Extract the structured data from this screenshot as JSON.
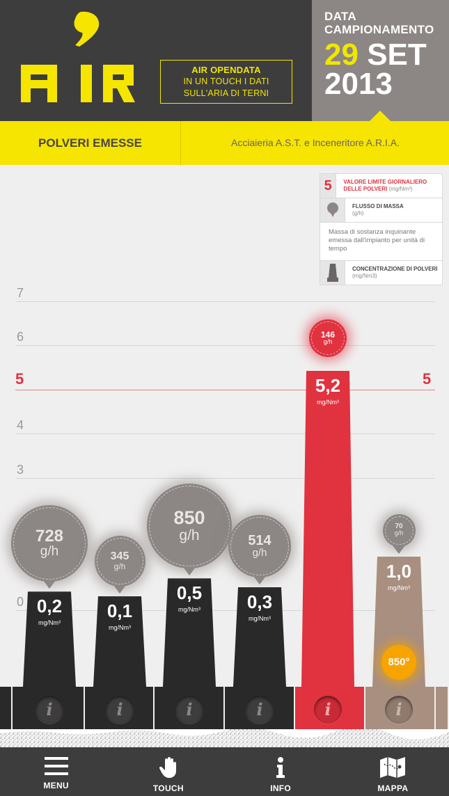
{
  "app": {
    "name": "AIR"
  },
  "header": {
    "tagline": {
      "line1": "AIR OPENDATA",
      "line2": "IN UN TOUCH I DATI",
      "line3": "SULL'ARIA DI TERNI"
    },
    "date_label_1": "DATA",
    "date_label_2": "CAMPIONAMENTO",
    "day": "29",
    "month": "SET",
    "year": "2013"
  },
  "tabs": {
    "active": "POLVERI EMESSE",
    "plant": "Acciaieria A.S.T. e Inceneritore A.R.I.A."
  },
  "legend": {
    "limit": {
      "value": "5",
      "label": "VALORE LIMITE GIORNALIERO DELLE POLVERI",
      "unit": "(mg/Nm³)"
    },
    "flow": {
      "label": "FLUSSO DI MASSA",
      "unit": "(g/h)",
      "description": "Massa di sostanza inquinante emessa dall'impianto per unità di tempo"
    },
    "concentration": {
      "label": "CONCENTRAZIONE DI POLVERI",
      "unit": "(mg/Nm3)"
    }
  },
  "colors": {
    "yellow": "#f5e500",
    "dark": "#3e3d3e",
    "gray": "#8c8684",
    "red": "#e0323f",
    "brown": "#a88f80",
    "orange": "#f7a400"
  },
  "chart_data": {
    "type": "bar",
    "y_ticks": [
      "0",
      "3",
      "4",
      "5",
      "6",
      "7"
    ],
    "limit": 5,
    "limit_label": "5",
    "conc_unit": "mg/Nm³",
    "flow_unit": "g/h",
    "series": [
      {
        "concentration": 0.2,
        "concentration_label": "0,2",
        "flow": 728,
        "flow_label": "728",
        "color": "#2a2929"
      },
      {
        "concentration": 0.1,
        "concentration_label": "0,1",
        "flow": 345,
        "flow_label": "345",
        "color": "#2a2929"
      },
      {
        "concentration": 0.5,
        "concentration_label": "0,5",
        "flow": 850,
        "flow_label": "850",
        "color": "#2a2929"
      },
      {
        "concentration": 0.3,
        "concentration_label": "0,3",
        "flow": 514,
        "flow_label": "514",
        "color": "#2a2929"
      },
      {
        "concentration": 5.2,
        "concentration_label": "5,2",
        "flow": 146,
        "flow_label": "146",
        "color": "#e0323f"
      },
      {
        "concentration": 1.0,
        "concentration_label": "1,0",
        "flow": 70,
        "flow_label": "70",
        "color": "#a88f80",
        "temperature": "850°"
      }
    ]
  },
  "nav": {
    "menu": "MENU",
    "touch": "TOUCH",
    "info": "INFO",
    "map": "MAPPA"
  },
  "info_glyph": "i"
}
